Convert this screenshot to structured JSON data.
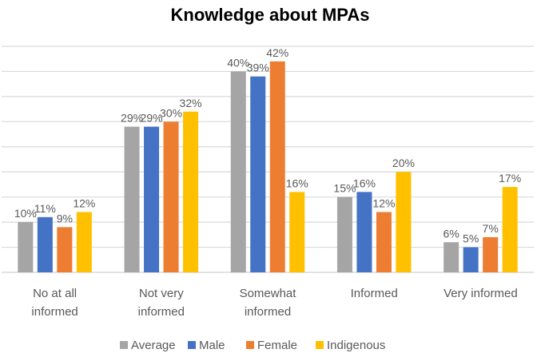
{
  "chart_data": {
    "type": "bar",
    "title": "Knowledge about MPAs",
    "categories": [
      [
        "No at all",
        "informed"
      ],
      [
        "Not very",
        "informed"
      ],
      [
        "Somewhat",
        "informed"
      ],
      [
        "Informed"
      ],
      [
        "Very informed"
      ]
    ],
    "series": [
      {
        "name": "Average",
        "color": "#A5A5A5",
        "values": [
          10,
          29,
          40,
          15,
          6
        ],
        "labels": [
          "10%",
          "29%",
          "40%",
          "15%",
          "6%"
        ]
      },
      {
        "name": "Male",
        "color": "#4472C4",
        "values": [
          11,
          29,
          39,
          16,
          5
        ],
        "labels": [
          "11%",
          "29%",
          "39%",
          "16%",
          "5%"
        ]
      },
      {
        "name": "Female",
        "color": "#ED7D31",
        "values": [
          9,
          30,
          42,
          12,
          7
        ],
        "labels": [
          "9%",
          "30%",
          "42%",
          "12%",
          "7%"
        ]
      },
      {
        "name": "Indigenous",
        "color": "#FFC000",
        "values": [
          12,
          32,
          16,
          20,
          17
        ],
        "labels": [
          "12%",
          "32%",
          "16%",
          "20%",
          "17%"
        ]
      }
    ],
    "ylim": [
      0,
      45
    ],
    "ytick_step": 5,
    "y_axis_labels_shown": false,
    "grid": true,
    "legend": "bottom"
  }
}
